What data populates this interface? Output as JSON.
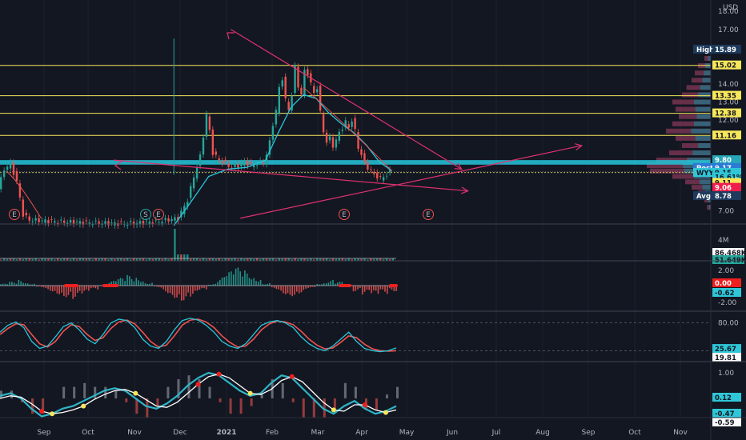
{
  "chart_data": {
    "type": "line",
    "currency_label": "USD",
    "price_axis_ticks": [
      "18.00",
      "17.00",
      "14.00",
      "13.00",
      "12.00",
      "7.00"
    ],
    "time_axis_labels": [
      "Sep",
      "Oct",
      "Nov",
      "Dec",
      "2021",
      "Feb",
      "Mar",
      "Apr",
      "May",
      "Jun",
      "Jul",
      "Aug",
      "Sep",
      "Oct",
      "Nov"
    ],
    "price_ylim": [
      6.5,
      18.4
    ],
    "price_tags": [
      {
        "label": "High",
        "value": "15.89",
        "bg": "#1e3a5c",
        "fg": "#ffffff"
      },
      {
        "label": "",
        "value": "15.02",
        "bg": "#f7e75a",
        "fg": "#131722"
      },
      {
        "label": "",
        "value": "13.35",
        "bg": "#f7e75a",
        "fg": "#131722"
      },
      {
        "label": "",
        "value": "12.38",
        "bg": "#f7e75a",
        "fg": "#131722"
      },
      {
        "label": "",
        "value": "11.16",
        "bg": "#f7e75a",
        "fg": "#131722"
      },
      {
        "label": "",
        "value": "9.80",
        "bg": "#26a6b8",
        "fg": "#ffffff"
      },
      {
        "label": "Post",
        "value": "9.17",
        "bg": "#2b7bd6",
        "fg": "#ffffff"
      },
      {
        "label": "WYY",
        "value": "9.15",
        "bg": "#2fc7d8",
        "fg": "#131722"
      },
      {
        "label": "",
        "value": "16.61%",
        "bg": "#2fc7d8",
        "fg": "#131722"
      },
      {
        "label": "",
        "value": "9.11",
        "bg": "#f7e75a",
        "fg": "#131722"
      },
      {
        "label": "",
        "value": "9.06",
        "bg": "#ef1f4b",
        "fg": "#ffffff"
      },
      {
        "label": "Avg",
        "value": "8.78",
        "bg": "#1e3a5c",
        "fg": "#ffffff"
      }
    ],
    "horizontal_levels": [
      15.02,
      13.35,
      12.38,
      11.16,
      9.11
    ],
    "support_band": [
      9.55,
      9.8
    ],
    "earnings_markers": [
      "E",
      "S",
      "E",
      "E",
      "E"
    ],
    "price_series": {
      "months": [
        "Aug",
        "Sep",
        "Oct",
        "Nov",
        "Dec",
        "2021",
        "Feb",
        "Mar",
        "Apr"
      ],
      "close": [
        [
          0,
          8.2
        ],
        [
          2,
          9.3
        ],
        [
          4,
          9.6
        ],
        [
          6,
          8.6
        ],
        [
          8,
          6.8
        ],
        [
          10,
          6.5
        ],
        [
          20,
          6.4
        ],
        [
          40,
          6.3
        ],
        [
          50,
          6.4
        ],
        [
          57,
          6.6
        ],
        [
          60,
          7.6
        ],
        [
          62,
          8.9
        ],
        [
          64,
          10.0
        ],
        [
          66,
          12.3
        ],
        [
          67,
          11.4
        ],
        [
          68,
          10.2
        ],
        [
          70,
          9.8
        ],
        [
          72,
          9.6
        ],
        [
          74,
          9.4
        ],
        [
          76,
          9.5
        ],
        [
          78,
          9.7
        ],
        [
          80,
          9.5
        ],
        [
          82,
          9.6
        ],
        [
          84,
          9.7
        ],
        [
          85,
          10.1
        ],
        [
          86,
          10.8
        ],
        [
          87,
          11.8
        ],
        [
          88,
          12.5
        ],
        [
          89,
          13.8
        ],
        [
          90,
          14.3
        ],
        [
          91,
          13.1
        ],
        [
          92,
          12.6
        ],
        [
          93,
          13.4
        ],
        [
          94,
          14.9
        ],
        [
          95,
          13.9
        ],
        [
          96,
          13.4
        ],
        [
          97,
          14.7
        ],
        [
          98,
          14.6
        ],
        [
          99,
          14.0
        ],
        [
          100,
          13.5
        ],
        [
          101,
          13.8
        ],
        [
          102,
          12.4
        ],
        [
          103,
          11.4
        ],
        [
          104,
          10.8
        ],
        [
          105,
          11.0
        ],
        [
          106,
          10.6
        ],
        [
          107,
          10.9
        ],
        [
          108,
          11.3
        ],
        [
          109,
          11.6
        ],
        [
          110,
          11.9
        ],
        [
          111,
          11.6
        ],
        [
          112,
          12.0
        ],
        [
          113,
          11.4
        ],
        [
          114,
          10.5
        ],
        [
          115,
          10.1
        ],
        [
          116,
          9.6
        ],
        [
          117,
          9.4
        ],
        [
          118,
          9.2
        ],
        [
          119,
          9.0
        ],
        [
          120,
          8.9
        ],
        [
          121,
          8.8
        ],
        [
          122,
          8.9
        ],
        [
          123,
          9.0
        ],
        [
          124,
          9.15
        ]
      ]
    },
    "ma_series": [
      [
        55,
        6.2
      ],
      [
        60,
        7.4
      ],
      [
        66,
        8.9
      ],
      [
        72,
        9.3
      ],
      [
        78,
        9.4
      ],
      [
        84,
        9.8
      ],
      [
        88,
        11.3
      ],
      [
        92,
        12.7
      ],
      [
        96,
        13.4
      ],
      [
        100,
        13.2
      ],
      [
        104,
        12.4
      ],
      [
        108,
        11.8
      ],
      [
        112,
        11.3
      ],
      [
        116,
        10.6
      ],
      [
        120,
        9.7
      ],
      [
        124,
        9.2
      ]
    ],
    "trendlines": [
      {
        "from": [
          73,
          17.0
        ],
        "to": [
          146,
          9.3
        ],
        "color": "#e0316f"
      },
      {
        "from": [
          36,
          9.8
        ],
        "to": [
          148,
          8.1
        ],
        "color": "#e0316f"
      },
      {
        "from": [
          76,
          6.6
        ],
        "to": [
          184,
          10.6
        ],
        "color": "#e0316f"
      }
    ],
    "volume": {
      "axis_label": "4M",
      "tags": [
        {
          "value": "86.468K",
          "bg": "#ffffff",
          "fg": "#131722"
        },
        {
          "value": "51.649K",
          "bg": "#26a69a",
          "fg": "#131722"
        }
      ]
    },
    "macd": {
      "ticks": [
        "2.00",
        "-2.00"
      ],
      "tags": [
        {
          "value": "0.00",
          "bg": "#ef1f1f",
          "fg": "#ffffff"
        },
        {
          "value": "-0.62",
          "bg": "#2fc7d8",
          "fg": "#131722"
        }
      ],
      "hist_sample": [
        0.2,
        0.4,
        0.6,
        0.3,
        -0.2,
        -0.6,
        -0.9,
        -1.2,
        -1.4,
        -1.0,
        -0.5,
        0.1,
        0.5,
        0.8,
        1.1,
        0.9,
        0.4,
        -0.2,
        -0.8,
        -1.3,
        -1.6,
        -1.2,
        -0.6,
        0.2,
        0.9,
        1.5,
        1.9,
        1.6,
        1.0,
        0.3,
        -0.4,
        -0.9,
        -1.1,
        -0.8,
        -0.3,
        0.3,
        0.6,
        0.4,
        -0.1,
        -0.6,
        -1.0,
        -1.2,
        -0.9,
        -0.6
      ]
    },
    "stoch": {
      "ticks": [
        "80.00"
      ],
      "tags": [
        {
          "value": "25.67",
          "bg": "#2fc7d8",
          "fg": "#131722"
        },
        {
          "value": "19.81",
          "bg": "#ffffff",
          "fg": "#131722"
        }
      ],
      "k": [
        60,
        75,
        82,
        70,
        40,
        25,
        30,
        50,
        72,
        80,
        65,
        45,
        35,
        55,
        80,
        88,
        85,
        70,
        45,
        30,
        25,
        40,
        65,
        85,
        90,
        86,
        75,
        60,
        40,
        30,
        25,
        35,
        55,
        75,
        82,
        85,
        80,
        70,
        50,
        35,
        25,
        20,
        30,
        45,
        60,
        40,
        25,
        20,
        18,
        20,
        26
      ],
      "d": [
        55,
        68,
        78,
        76,
        55,
        35,
        28,
        40,
        62,
        76,
        72,
        55,
        42,
        48,
        68,
        82,
        86,
        78,
        60,
        40,
        28,
        32,
        52,
        75,
        86,
        88,
        82,
        70,
        52,
        38,
        28,
        30,
        45,
        65,
        78,
        84,
        82,
        76,
        62,
        45,
        32,
        24,
        26,
        38,
        52,
        48,
        34,
        24,
        20,
        19,
        20
      ]
    },
    "wavetrend": {
      "ticks": [
        "1.00"
      ],
      "tags": [
        {
          "value": "0.12",
          "bg": "#2fc7d8",
          "fg": "#131722"
        },
        {
          "value": "-0.47",
          "bg": "#2fc7d8",
          "fg": "#131722"
        },
        {
          "value": "-0.59",
          "bg": "#ffffff",
          "fg": "#131722"
        }
      ],
      "wt1": [
        0.1,
        0.2,
        0.0,
        -0.4,
        -0.7,
        -0.6,
        -0.4,
        -0.3,
        -0.1,
        0.1,
        0.3,
        0.4,
        0.3,
        0.0,
        -0.3,
        -0.4,
        -0.2,
        0.1,
        0.5,
        0.8,
        1.0,
        0.9,
        0.6,
        0.3,
        0.1,
        0.2,
        0.6,
        0.9,
        0.8,
        0.4,
        0.0,
        -0.4,
        -0.6,
        -0.3,
        -0.1,
        -0.4,
        -0.6,
        -0.5,
        -0.3
      ],
      "wt2": [
        0.0,
        0.1,
        0.05,
        -0.2,
        -0.5,
        -0.6,
        -0.55,
        -0.45,
        -0.3,
        -0.05,
        0.15,
        0.3,
        0.35,
        0.2,
        -0.05,
        -0.3,
        -0.35,
        -0.15,
        0.2,
        0.55,
        0.85,
        0.95,
        0.8,
        0.5,
        0.2,
        0.15,
        0.35,
        0.7,
        0.85,
        0.65,
        0.25,
        -0.15,
        -0.45,
        -0.5,
        -0.25,
        -0.25,
        -0.45,
        -0.55,
        -0.45
      ]
    }
  }
}
